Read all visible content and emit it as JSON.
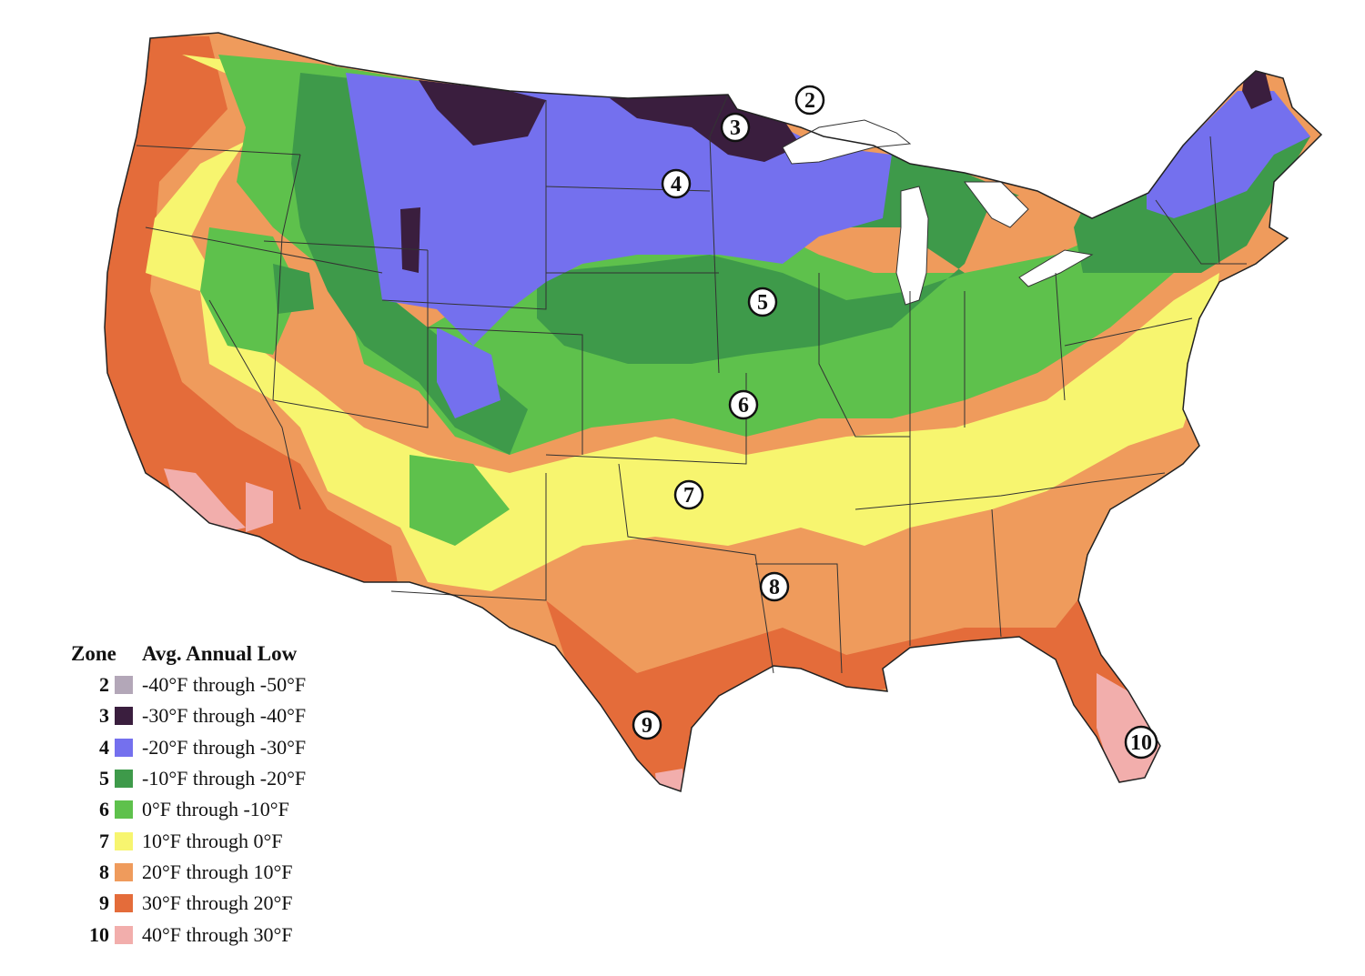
{
  "map": {
    "colors": {
      "2": "#b3a7b8",
      "3": "#3a1e3e",
      "4": "#7470ee",
      "5": "#3e9a4a",
      "6": "#5ec14c",
      "7": "#f7f56f",
      "8": "#ef9b5c",
      "9": "#e46c3a",
      "10": "#f2aeac"
    },
    "zone_markers": [
      {
        "label": "2"
      },
      {
        "label": "3"
      },
      {
        "label": "4"
      },
      {
        "label": "5"
      },
      {
        "label": "6"
      },
      {
        "label": "7"
      },
      {
        "label": "8"
      },
      {
        "label": "9"
      },
      {
        "label": "10"
      }
    ]
  },
  "legend": {
    "zone_header": "Zone",
    "low_header": "Avg. Annual Low",
    "rows": [
      {
        "zone": "2",
        "range": "-40°F through -50°F",
        "color": "#b3a7b8"
      },
      {
        "zone": "3",
        "range": "-30°F through -40°F",
        "color": "#3a1e3e"
      },
      {
        "zone": "4",
        "range": "-20°F through -30°F",
        "color": "#7470ee"
      },
      {
        "zone": "5",
        "range": "-10°F through -20°F",
        "color": "#3e9a4a"
      },
      {
        "zone": "6",
        "range": "0°F through -10°F",
        "color": "#5ec14c"
      },
      {
        "zone": "7",
        "range": "10°F through 0°F",
        "color": "#f7f56f"
      },
      {
        "zone": "8",
        "range": "20°F through 10°F",
        "color": "#ef9b5c"
      },
      {
        "zone": "9",
        "range": "30°F through 20°F",
        "color": "#e46c3a"
      },
      {
        "zone": "10",
        "range": "40°F through 30°F",
        "color": "#f2aeac"
      }
    ]
  }
}
